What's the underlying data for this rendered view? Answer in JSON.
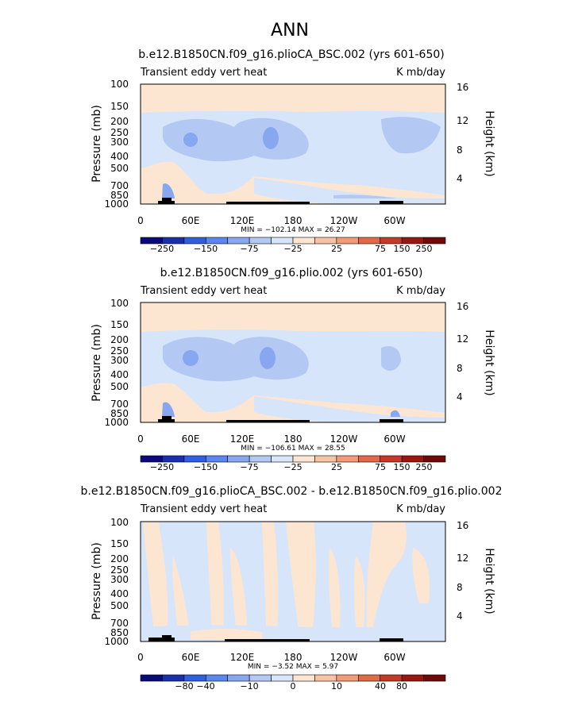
{
  "page_title": "ANN",
  "colors": {
    "cb_fill": [
      "#0a0a7a",
      "#1a2fb0",
      "#2f5fe0",
      "#5a86ef",
      "#87a8f0",
      "#b4c8f4",
      "#d6e5fa",
      "#fde6d1",
      "#f8c3a3",
      "#f29b78",
      "#e06a48",
      "#c43a26",
      "#9a1710",
      "#6e0a0a"
    ],
    "land": "#000000"
  },
  "chart_data": [
    {
      "type": "heatmap",
      "title": "b.e12.B1850CN.f09_g16.plioCA_BSC.002 (yrs 601-650)",
      "left_label": "Transient eddy vert heat",
      "right_label": "K mb/day",
      "ylabel": "Pressure (mb)",
      "ylabel_right": "Height (km)",
      "pressure_ticks": [
        "100",
        "150",
        "200",
        "250",
        "300",
        "400",
        "500",
        "700",
        "850",
        "1000"
      ],
      "height_ticks": [
        "16",
        "12",
        "8",
        "4"
      ],
      "x_ticks": [
        "0",
        "60E",
        "120E",
        "180",
        "120W",
        "60W"
      ],
      "minmax": "MIN = −102.14   MAX =   26.27",
      "colorbar_labels": [
        "−250",
        "−150",
        "−75",
        "−25",
        "25",
        "75",
        "150",
        "250"
      ]
    },
    {
      "type": "heatmap",
      "title": "b.e12.B1850CN.f09_g16.plio.002 (yrs 601-650)",
      "left_label": "Transient eddy vert heat",
      "right_label": "K mb/day",
      "ylabel": "Pressure (mb)",
      "ylabel_right": "Height (km)",
      "pressure_ticks": [
        "100",
        "150",
        "200",
        "250",
        "300",
        "400",
        "500",
        "700",
        "850",
        "1000"
      ],
      "height_ticks": [
        "16",
        "12",
        "8",
        "4"
      ],
      "x_ticks": [
        "0",
        "60E",
        "120E",
        "180",
        "120W",
        "60W"
      ],
      "minmax": "MIN = −106.61   MAX =   28.55",
      "colorbar_labels": [
        "−250",
        "−150",
        "−75",
        "−25",
        "25",
        "75",
        "150",
        "250"
      ]
    },
    {
      "type": "heatmap",
      "title": "b.e12.B1850CN.f09_g16.plioCA_BSC.002 - b.e12.B1850CN.f09_g16.plio.002",
      "left_label": "Transient eddy vert heat",
      "right_label": "K mb/day",
      "ylabel": "Pressure (mb)",
      "ylabel_right": "Height (km)",
      "pressure_ticks": [
        "100",
        "150",
        "200",
        "250",
        "300",
        "400",
        "500",
        "700",
        "850",
        "1000"
      ],
      "height_ticks": [
        "16",
        "12",
        "8",
        "4"
      ],
      "x_ticks": [
        "0",
        "60E",
        "120E",
        "180",
        "120W",
        "60W"
      ],
      "minmax": "MIN =   −3.52   MAX =     5.97",
      "colorbar_labels": [
        "−80",
        "−40",
        "−10",
        "0",
        "10",
        "40",
        "80"
      ]
    }
  ]
}
